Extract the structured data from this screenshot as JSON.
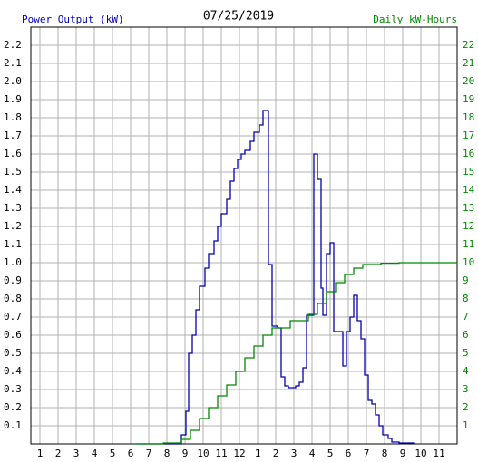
{
  "chart_data": {
    "type": "line",
    "step": true,
    "title": "07/25/2019",
    "ylabel": "Power Output (kW)",
    "y2label": "Daily kW-Hours",
    "xlim": [
      0.5,
      24
    ],
    "xticks": [
      1,
      2,
      3,
      4,
      5,
      6,
      7,
      8,
      9,
      10,
      11,
      12,
      {
        "value": 13,
        "label": "1"
      },
      {
        "value": 14,
        "label": "2"
      },
      {
        "value": 15,
        "label": "3"
      },
      {
        "value": 16,
        "label": "4"
      },
      {
        "value": 17,
        "label": "5"
      },
      {
        "value": 18,
        "label": "6"
      },
      {
        "value": 19,
        "label": "7"
      },
      {
        "value": 20,
        "label": "8"
      },
      {
        "value": 21,
        "label": "9"
      },
      {
        "value": 22,
        "label": "10"
      },
      {
        "value": 23,
        "label": "11"
      }
    ],
    "ylim": [
      0,
      2.3
    ],
    "yticks": [
      0.1,
      0.2,
      0.3,
      0.4,
      0.5,
      0.6,
      0.7,
      0.8,
      0.9,
      {
        "value": 1,
        "label": "1.0"
      },
      1.1,
      1.2,
      1.3,
      1.4,
      1.5,
      1.6,
      1.7,
      1.8,
      1.9,
      {
        "value": 2,
        "label": "2.0"
      },
      2.1,
      2.2
    ],
    "y2lim": [
      0,
      23
    ],
    "y2ticks": [
      1,
      2,
      3,
      4,
      5,
      6,
      7,
      8,
      9,
      10,
      11,
      12,
      13,
      14,
      15,
      16,
      17,
      18,
      19,
      20,
      21,
      22
    ],
    "grid": true,
    "series": [
      {
        "color": "#0000aa",
        "x": [
          6.3,
          8.8,
          9.05,
          9.2,
          9.4,
          9.6,
          9.8,
          10.1,
          10.3,
          10.6,
          10.8,
          11,
          11.3,
          11.5,
          11.7,
          11.9,
          12.1,
          12.3,
          12.6,
          12.8,
          13.1,
          13.3,
          13.5,
          13.6,
          13.8,
          14.1,
          14.3,
          14.5,
          14.7,
          15.1,
          15.3,
          15.5,
          15.7,
          16,
          16.1,
          16.3,
          16.5,
          16.6,
          16.8,
          17,
          17.2,
          17.5,
          17.7,
          17.9,
          18.1,
          18.3,
          18.5,
          18.7,
          18.9,
          19.1,
          19.3,
          19.5,
          19.7,
          19.9,
          20.2,
          20.4,
          20.8,
          21.6
        ],
        "values": [
          0,
          0.05,
          0.18,
          0.5,
          0.6,
          0.74,
          0.87,
          0.97,
          1.05,
          1.12,
          1.2,
          1.27,
          1.35,
          1.45,
          1.52,
          1.57,
          1.6,
          1.62,
          1.67,
          1.72,
          1.76,
          1.84,
          1.84,
          0.99,
          0.65,
          0.64,
          0.37,
          0.32,
          0.31,
          0.32,
          0.34,
          0.42,
          0.71,
          0.71,
          1.6,
          1.46,
          0.86,
          0.71,
          1.05,
          1.11,
          0.62,
          0.62,
          0.43,
          0.62,
          0.7,
          0.82,
          0.68,
          0.58,
          0.38,
          0.24,
          0.22,
          0.16,
          0.1,
          0.05,
          0.03,
          0.01,
          0.005,
          0
        ]
      },
      {
        "color": "#008800",
        "axis": "y2",
        "x": [
          6.3,
          7.8,
          8.8,
          9.3,
          9.8,
          10.3,
          10.8,
          11.3,
          11.8,
          12.3,
          12.8,
          13.3,
          13.8,
          14.8,
          15.8,
          16.3,
          16.8,
          17.3,
          17.8,
          18.3,
          18.8,
          19.8,
          20.8,
          24
        ],
        "values": [
          0,
          0.05,
          0.25,
          0.75,
          1.4,
          2,
          2.65,
          3.25,
          4,
          4.75,
          5.4,
          6,
          6.4,
          6.8,
          7.15,
          7.75,
          8.4,
          8.9,
          9.35,
          9.7,
          9.9,
          9.97,
          10,
          10
        ]
      }
    ]
  }
}
